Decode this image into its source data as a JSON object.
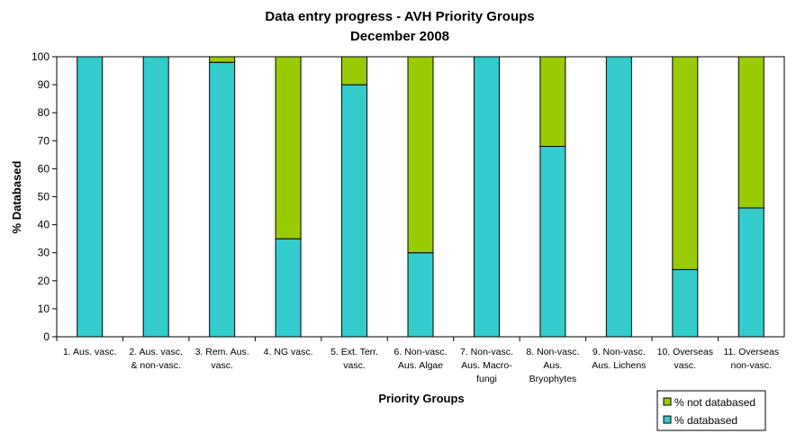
{
  "chart_data": {
    "type": "bar",
    "stacked": true,
    "title": "Data entry progress - AVH Priority Groups",
    "subtitle": "December 2008",
    "xlabel": "Priority Groups",
    "ylabel": "% Databased",
    "ylim": [
      0,
      100
    ],
    "yticks": [
      0,
      10,
      20,
      30,
      40,
      50,
      60,
      70,
      80,
      90,
      100
    ],
    "grid": false,
    "legend_position": "bottom-right",
    "categories": [
      [
        "1. Aus. vasc."
      ],
      [
        "2. Aus. vasc.",
        "& non-vasc."
      ],
      [
        "3. Rem. Aus.",
        "vasc."
      ],
      [
        "4. NG vasc."
      ],
      [
        "5. Ext. Terr.",
        "vasc."
      ],
      [
        "6. Non-vasc.",
        "Aus. Algae"
      ],
      [
        "7. Non-vasc.",
        "Aus. Macro-",
        "fungi"
      ],
      [
        "8. Non-vasc.",
        "Aus.",
        "Bryophytes"
      ],
      [
        "9. Non-vasc.",
        "Aus. Lichens"
      ],
      [
        "10. Overseas",
        "vasc."
      ],
      [
        "11. Overseas",
        "non-vasc."
      ]
    ],
    "series": [
      {
        "name": "% databased",
        "color": "#33CCCC",
        "values": [
          100,
          100,
          98,
          35,
          90,
          30,
          100,
          68,
          100,
          24,
          46
        ]
      },
      {
        "name": "% not databased",
        "color": "#99CC00",
        "values": [
          0,
          0,
          2,
          65,
          10,
          70,
          0,
          32,
          0,
          76,
          54
        ]
      }
    ],
    "legend_order": [
      "% not databased",
      "% databased"
    ]
  }
}
